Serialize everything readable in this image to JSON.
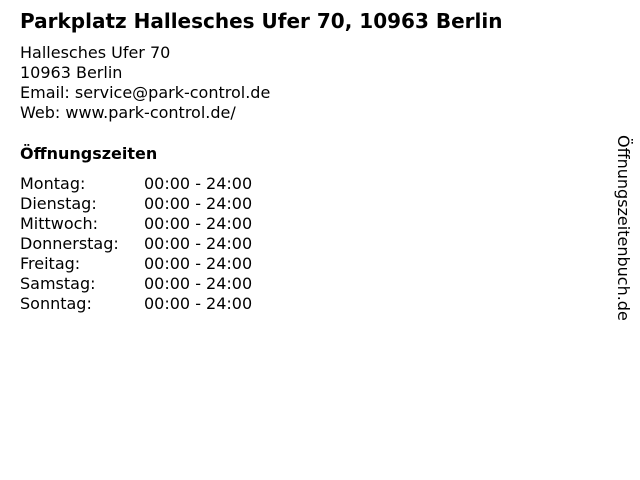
{
  "title": "Parkplatz Hallesches Ufer 70, 10963 Berlin",
  "address": {
    "street": "Hallesches Ufer 70",
    "city": "10963 Berlin",
    "email": "Email: service@park-control.de",
    "web": "Web: www.park-control.de/"
  },
  "hours_title": "Öffnungszeiten",
  "hours": [
    {
      "day": "Montag:",
      "time": "00:00 - 24:00"
    },
    {
      "day": "Dienstag:",
      "time": "00:00 - 24:00"
    },
    {
      "day": "Mittwoch:",
      "time": "00:00 - 24:00"
    },
    {
      "day": "Donnerstag:",
      "time": "00:00 - 24:00"
    },
    {
      "day": "Freitag:",
      "time": "00:00 - 24:00"
    },
    {
      "day": "Samstag:",
      "time": "00:00 - 24:00"
    },
    {
      "day": "Sonntag:",
      "time": "00:00 - 24:00"
    }
  ],
  "side_label": "Öffnungszeitenbuch.de"
}
